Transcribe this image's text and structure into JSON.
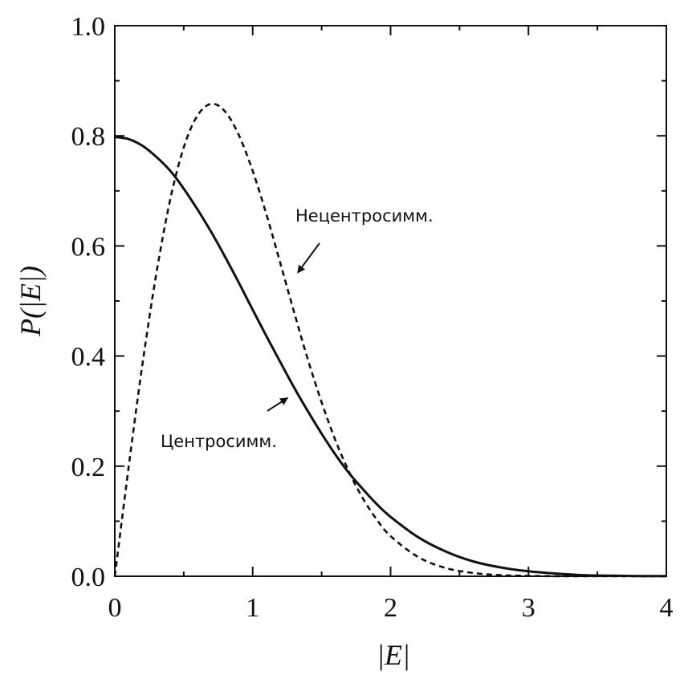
{
  "chart_data": {
    "type": "line",
    "title": "",
    "xlabel": "|E|",
    "ylabel": "P(|E|)",
    "xlim": [
      0,
      4
    ],
    "ylim": [
      0,
      1.0
    ],
    "xticks": [
      "0",
      "1",
      "2",
      "3",
      "4"
    ],
    "yticks": [
      "0.0",
      "0.2",
      "0.4",
      "0.6",
      "0.8",
      "1.0"
    ],
    "series": [
      {
        "name": "Центросимм.",
        "style": "solid",
        "x": [
          0,
          0.1,
          0.2,
          0.3,
          0.4,
          0.5,
          0.6,
          0.7,
          0.8,
          0.9,
          1.0,
          1.1,
          1.2,
          1.3,
          1.4,
          1.5,
          1.6,
          1.7,
          1.8,
          1.9,
          2.0,
          2.2,
          2.4,
          2.6,
          2.8,
          3.0,
          3.2,
          3.4,
          3.6,
          3.8,
          4.0
        ],
        "values": [
          0.798,
          0.794,
          0.782,
          0.762,
          0.737,
          0.704,
          0.666,
          0.625,
          0.58,
          0.533,
          0.484,
          0.436,
          0.389,
          0.343,
          0.3,
          0.259,
          0.221,
          0.187,
          0.158,
          0.131,
          0.108,
          0.071,
          0.045,
          0.027,
          0.016,
          0.009,
          0.005,
          0.002,
          0.001,
          0.0005,
          0.0003
        ]
      },
      {
        "name": "Нецентросимм.",
        "style": "dashed",
        "x": [
          0,
          0.1,
          0.2,
          0.3,
          0.4,
          0.5,
          0.6,
          0.7,
          0.8,
          0.9,
          1.0,
          1.1,
          1.2,
          1.3,
          1.4,
          1.5,
          1.6,
          1.7,
          1.8,
          1.9,
          2.0,
          2.2,
          2.4,
          2.6,
          2.8,
          3.0,
          3.2,
          3.4,
          3.6,
          3.8,
          4.0
        ],
        "values": [
          0,
          0.198,
          0.384,
          0.548,
          0.682,
          0.779,
          0.837,
          0.858,
          0.844,
          0.801,
          0.736,
          0.657,
          0.569,
          0.48,
          0.394,
          0.316,
          0.247,
          0.189,
          0.141,
          0.103,
          0.073,
          0.035,
          0.015,
          0.006,
          0.002,
          0.0007,
          0.0002,
          0.0001,
          0,
          0,
          0
        ]
      }
    ],
    "annotations": [
      {
        "text": "Нецентросимм.",
        "series": "Нецентросимм.",
        "points_to": [
          1.28,
          0.56
        ]
      },
      {
        "text": "Центросимм.",
        "series": "Центросимм.",
        "points_to": [
          1.3,
          0.34
        ]
      }
    ]
  }
}
